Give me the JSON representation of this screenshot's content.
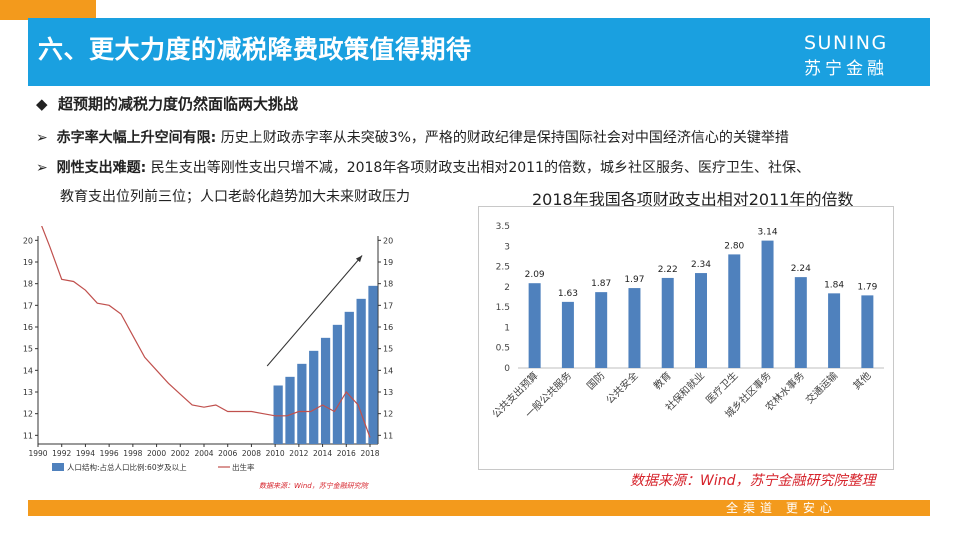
{
  "header": {
    "title": "六、更大力度的减税降费政策值得期待",
    "logo_en": "SUNING",
    "logo_cn": "苏宁金融"
  },
  "section": {
    "heading": "超预期的减税力度仍然面临两大挑战",
    "bullets": [
      {
        "lead": "赤字率大幅上升空间有限:",
        "text": "历史上财政赤字率从未突破3%，严格的财政纪律是保持国际社会对中国经济信心的关键举措"
      },
      {
        "lead": "刚性支出难题:",
        "text": "民生支出等刚性支出只增不减，2018年各项财政支出相对2011的倍数，城乡社区服务、医疗卫生、社保、",
        "text2": "教育支出位列前三位；人口老龄化趋势加大未来财政压力"
      }
    ]
  },
  "chart_data": [
    {
      "type": "bar+line",
      "title": "",
      "x": [
        1990,
        1991,
        1992,
        1993,
        1994,
        1995,
        1996,
        1997,
        1998,
        1999,
        2000,
        2001,
        2002,
        2003,
        2004,
        2005,
        2006,
        2007,
        2008,
        2009,
        2010,
        2011,
        2012,
        2013,
        2014,
        2015,
        2016,
        2017,
        2018
      ],
      "x_ticks": [
        1990,
        1992,
        1994,
        1996,
        1998,
        2000,
        2002,
        2004,
        2006,
        2008,
        2010,
        2012,
        2014,
        2016,
        2018
      ],
      "series": [
        {
          "name": "人口结构:占总人口比例:60岁及以上",
          "type": "bar",
          "axis": "right",
          "x": [
            2010,
            2011,
            2012,
            2013,
            2014,
            2015,
            2016,
            2017,
            2018
          ],
          "values": [
            13.3,
            13.7,
            14.3,
            14.9,
            15.5,
            16.1,
            16.7,
            17.3,
            17.9
          ]
        },
        {
          "name": "出生率",
          "type": "line",
          "axis": "left",
          "values": [
            21.1,
            19.7,
            18.2,
            18.1,
            17.7,
            17.1,
            17.0,
            16.6,
            15.6,
            14.6,
            14.0,
            13.4,
            12.9,
            12.4,
            12.3,
            12.4,
            12.1,
            12.1,
            12.1,
            12.0,
            11.9,
            11.9,
            12.1,
            12.1,
            12.4,
            12.1,
            13.0,
            12.4,
            10.9
          ]
        }
      ],
      "y_left_ticks": [
        11,
        12,
        13,
        14,
        15,
        16,
        17,
        18,
        19,
        20
      ],
      "y_right_ticks": [
        11,
        12,
        13,
        14,
        15,
        16,
        17,
        18,
        19,
        20
      ],
      "ylim": [
        10.6,
        20.2
      ],
      "legend_placement": "bottom",
      "source": "数据来源：Wind，苏宁金融研究院"
    },
    {
      "type": "bar",
      "title": "2018年我国各项财政支出相对2011年的倍数",
      "categories": [
        "公共支出预算",
        "一般公共服务",
        "国防",
        "公共安全",
        "教育",
        "社保和就业",
        "医疗卫生",
        "城乡社区事务",
        "农林水事务",
        "交通运输",
        "其他"
      ],
      "values": [
        2.09,
        1.63,
        1.87,
        1.97,
        2.22,
        2.34,
        2.8,
        3.14,
        2.24,
        1.84,
        1.79
      ],
      "y_ticks": [
        "0",
        "0.5",
        "1",
        "1.5",
        "2",
        "2.5",
        "3",
        "3.5"
      ],
      "ylim": [
        0,
        3.5
      ],
      "grid": false,
      "color": "#4f81bd"
    }
  ],
  "source_note": "数据来源：Wind，苏宁金融研究院整理",
  "footer": {
    "slogan": "全渠道 更安心"
  }
}
